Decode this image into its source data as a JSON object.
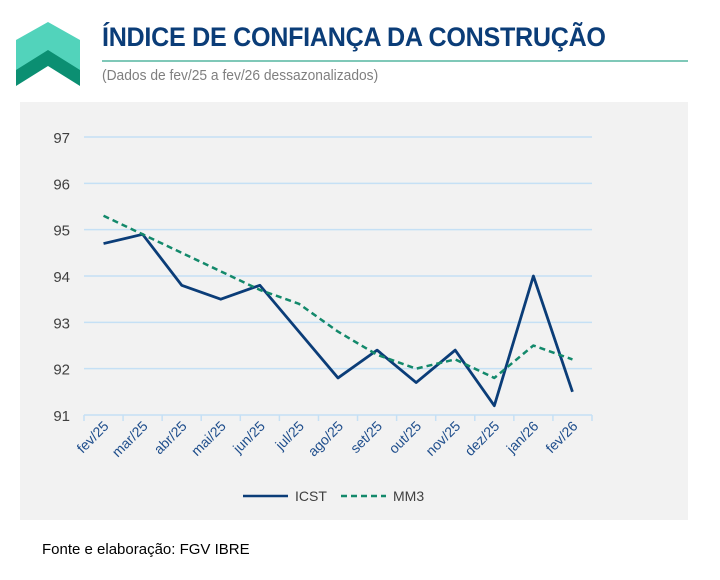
{
  "header": {
    "title": "ÍNDICE DE CONFIANÇA DA CONSTRUÇÃO",
    "subtitle": "(Dados de fev/25 a fev/26 dessazonalizados)"
  },
  "footer": "Fonte e elaboração: FGV IBRE",
  "colors": {
    "icst": "#0b3d78",
    "mm3": "#13896b",
    "grid": "#c5e0f5",
    "title": "#0b3d78",
    "logo_light": "#52d3bb",
    "logo_dark": "#0b8f72"
  },
  "chart_data": {
    "type": "line",
    "categories": [
      "fev/25",
      "mar/25",
      "abr/25",
      "mai/25",
      "jun/25",
      "jul/25",
      "ago/25",
      "set/25",
      "out/25",
      "nov/25",
      "dez/25",
      "jan/26",
      "fev/26"
    ],
    "series": [
      {
        "name": "ICST",
        "style": "solid",
        "values": [
          94.7,
          94.9,
          93.8,
          93.5,
          93.8,
          92.8,
          91.8,
          92.4,
          91.7,
          92.4,
          91.2,
          94.0,
          91.5
        ]
      },
      {
        "name": "MM3",
        "style": "dashed",
        "values": [
          95.3,
          94.9,
          94.5,
          94.1,
          93.7,
          93.4,
          92.8,
          92.3,
          92.0,
          92.2,
          91.8,
          92.5,
          92.2
        ]
      }
    ],
    "yticks": [
      91,
      92,
      93,
      94,
      95,
      96,
      97
    ],
    "ylim": [
      91,
      97
    ],
    "grid": true,
    "legend": "bottom"
  }
}
